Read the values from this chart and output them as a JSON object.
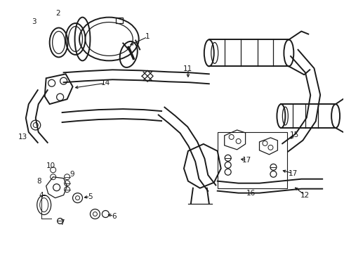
{
  "bg_color": "#ffffff",
  "line_color": "#1a1a1a",
  "figsize": [
    4.9,
    3.6
  ],
  "dpi": 100,
  "label_fontsize": 7.5
}
